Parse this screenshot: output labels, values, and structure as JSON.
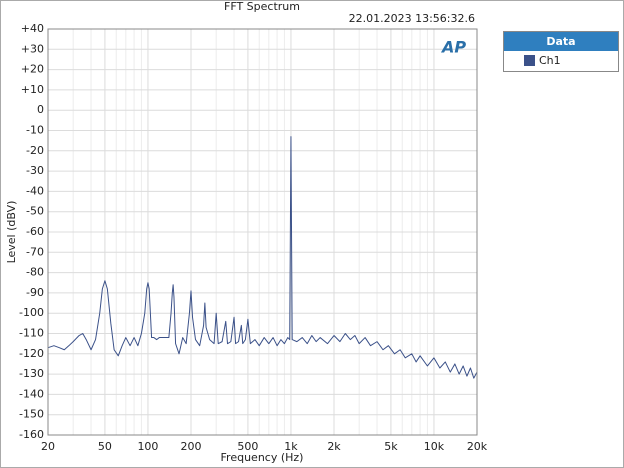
{
  "chart_data": {
    "type": "line",
    "title": "FFT Spectrum",
    "subtitle": "22.01.2023 13:56:32.6",
    "logo": "AP",
    "x_label": "Frequency (Hz)",
    "y_label": "Level (dBV)",
    "x_log": true,
    "grid": true,
    "legend_title": "Data",
    "legend_position": "outside-top-right",
    "xlim": [
      20,
      20000
    ],
    "ylim": [
      -160,
      40
    ],
    "xticks": [
      20,
      50,
      100,
      200,
      500,
      {
        "value": 1000,
        "label": "1k"
      },
      {
        "value": 2000,
        "label": "2k"
      },
      {
        "value": 5000,
        "label": "5k"
      },
      {
        "value": 10000,
        "label": "10k"
      },
      {
        "value": 20000,
        "label": "20k"
      }
    ],
    "xminorticks": [
      30,
      40,
      60,
      70,
      80,
      90,
      300,
      400,
      600,
      700,
      800,
      900,
      3000,
      4000,
      6000,
      7000,
      8000,
      9000
    ],
    "yticks": [
      {
        "value": 40,
        "label": "+40"
      },
      {
        "value": 30,
        "label": "+30"
      },
      {
        "value": 20,
        "label": "+20"
      },
      {
        "value": 10,
        "label": "+10"
      },
      0,
      -10,
      -20,
      -30,
      -40,
      -50,
      -60,
      -70,
      -80,
      -90,
      -100,
      -110,
      -120,
      -130,
      -140,
      -150,
      -160
    ],
    "x": [
      20,
      22,
      24,
      26,
      28,
      30,
      33,
      35,
      37,
      40,
      43,
      46,
      48,
      50,
      52,
      55,
      58,
      62,
      66,
      70,
      75,
      80,
      85,
      90,
      95,
      98,
      100,
      102,
      106,
      110,
      115,
      120,
      130,
      140,
      145,
      148,
      150,
      152,
      156,
      165,
      175,
      185,
      195,
      200,
      205,
      215,
      230,
      245,
      250,
      255,
      270,
      290,
      300,
      310,
      330,
      350,
      360,
      380,
      400,
      410,
      430,
      450,
      460,
      480,
      500,
      520,
      560,
      600,
      650,
      700,
      750,
      800,
      850,
      900,
      950,
      980,
      1000,
      1020,
      1100,
      1200,
      1300,
      1400,
      1500,
      1600,
      1800,
      2000,
      2200,
      2400,
      2600,
      2800,
      3000,
      3300,
      3600,
      4000,
      4400,
      4800,
      5300,
      5800,
      6300,
      7000,
      7500,
      8000,
      9000,
      10000,
      11000,
      12000,
      13000,
      14000,
      15000,
      16000,
      17000,
      18000,
      19000,
      20000
    ],
    "series": [
      {
        "name": "Ch1",
        "color": "#3b5189",
        "values": [
          -117,
          -116,
          -117,
          -118,
          -116,
          -114,
          -111,
          -110,
          -113,
          -118,
          -113,
          -100,
          -88,
          -84,
          -88,
          -105,
          -118,
          -121,
          -116,
          -112,
          -116,
          -112,
          -116,
          -110,
          -100,
          -88,
          -85,
          -88,
          -112,
          -112,
          -113,
          -112,
          -112,
          -112,
          -100,
          -90,
          -86,
          -92,
          -115,
          -120,
          -112,
          -115,
          -100,
          -89,
          -102,
          -113,
          -116,
          -106,
          -95,
          -107,
          -113,
          -115,
          -100,
          -115,
          -114,
          -104,
          -115,
          -114,
          -102,
          -115,
          -114,
          -106,
          -115,
          -113,
          -103,
          -115,
          -113,
          -116,
          -112,
          -115,
          -112,
          -116,
          -113,
          -115,
          -112,
          -113,
          -13,
          -113,
          -114,
          -112,
          -115,
          -111,
          -114,
          -112,
          -115,
          -111,
          -114,
          -110,
          -113,
          -111,
          -115,
          -112,
          -116,
          -114,
          -118,
          -116,
          -120,
          -118,
          -122,
          -120,
          -124,
          -121,
          -126,
          -122,
          -127,
          -124,
          -129,
          -125,
          -130,
          -126,
          -131,
          -127,
          -132,
          -129
        ]
      }
    ]
  }
}
